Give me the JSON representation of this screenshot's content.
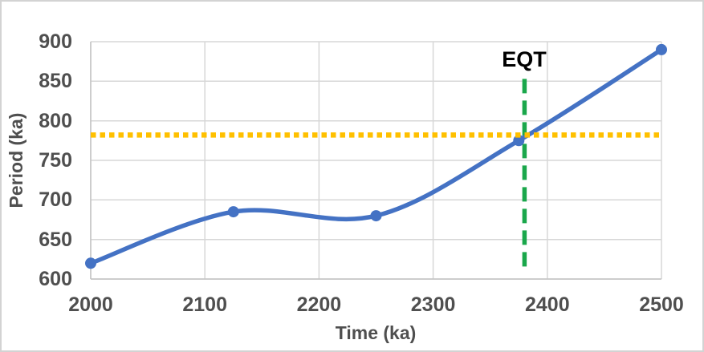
{
  "chart_data": {
    "type": "line",
    "title": "",
    "xlabel": "Time (ka)",
    "ylabel": "Period (ka)",
    "x": [
      2000,
      2125,
      2250,
      2375,
      2500
    ],
    "series": [
      {
        "name": "Period",
        "values": [
          620,
          685,
          680,
          775,
          890
        ],
        "color": "#4472C4",
        "smooth": true,
        "markers": true
      }
    ],
    "xlim": [
      2000,
      2500
    ],
    "ylim": [
      600,
      900
    ],
    "x_ticks": [
      "2000",
      "2100",
      "2200",
      "2300",
      "2400",
      "2500"
    ],
    "y_ticks": [
      "600",
      "650",
      "700",
      "750",
      "800",
      "850",
      "900"
    ],
    "grid": "on",
    "legend": "none",
    "annotations": {
      "eqt_label": "EQT",
      "vertical_reference_line": {
        "time_ka": 2380,
        "span_period_ka": [
          608,
          853
        ],
        "color": "#1AA74B",
        "style": "dashed"
      },
      "horizontal_reference_line": {
        "period_ka": 782,
        "span_time_ka": [
          2000,
          2500
        ],
        "color": "#FFC000",
        "style": "dotted"
      }
    }
  },
  "colors": {
    "series_blue": "#4472C4",
    "reference_gold": "#FFC000",
    "reference_green": "#1AA74B",
    "gridline": "#D7D7D7",
    "axis_line": "#C3C3C3",
    "axis_text": "#4F4F4F",
    "annotation_text": "#000000",
    "background": "#FFFFFF",
    "frame_border": "#D3D3D3"
  }
}
